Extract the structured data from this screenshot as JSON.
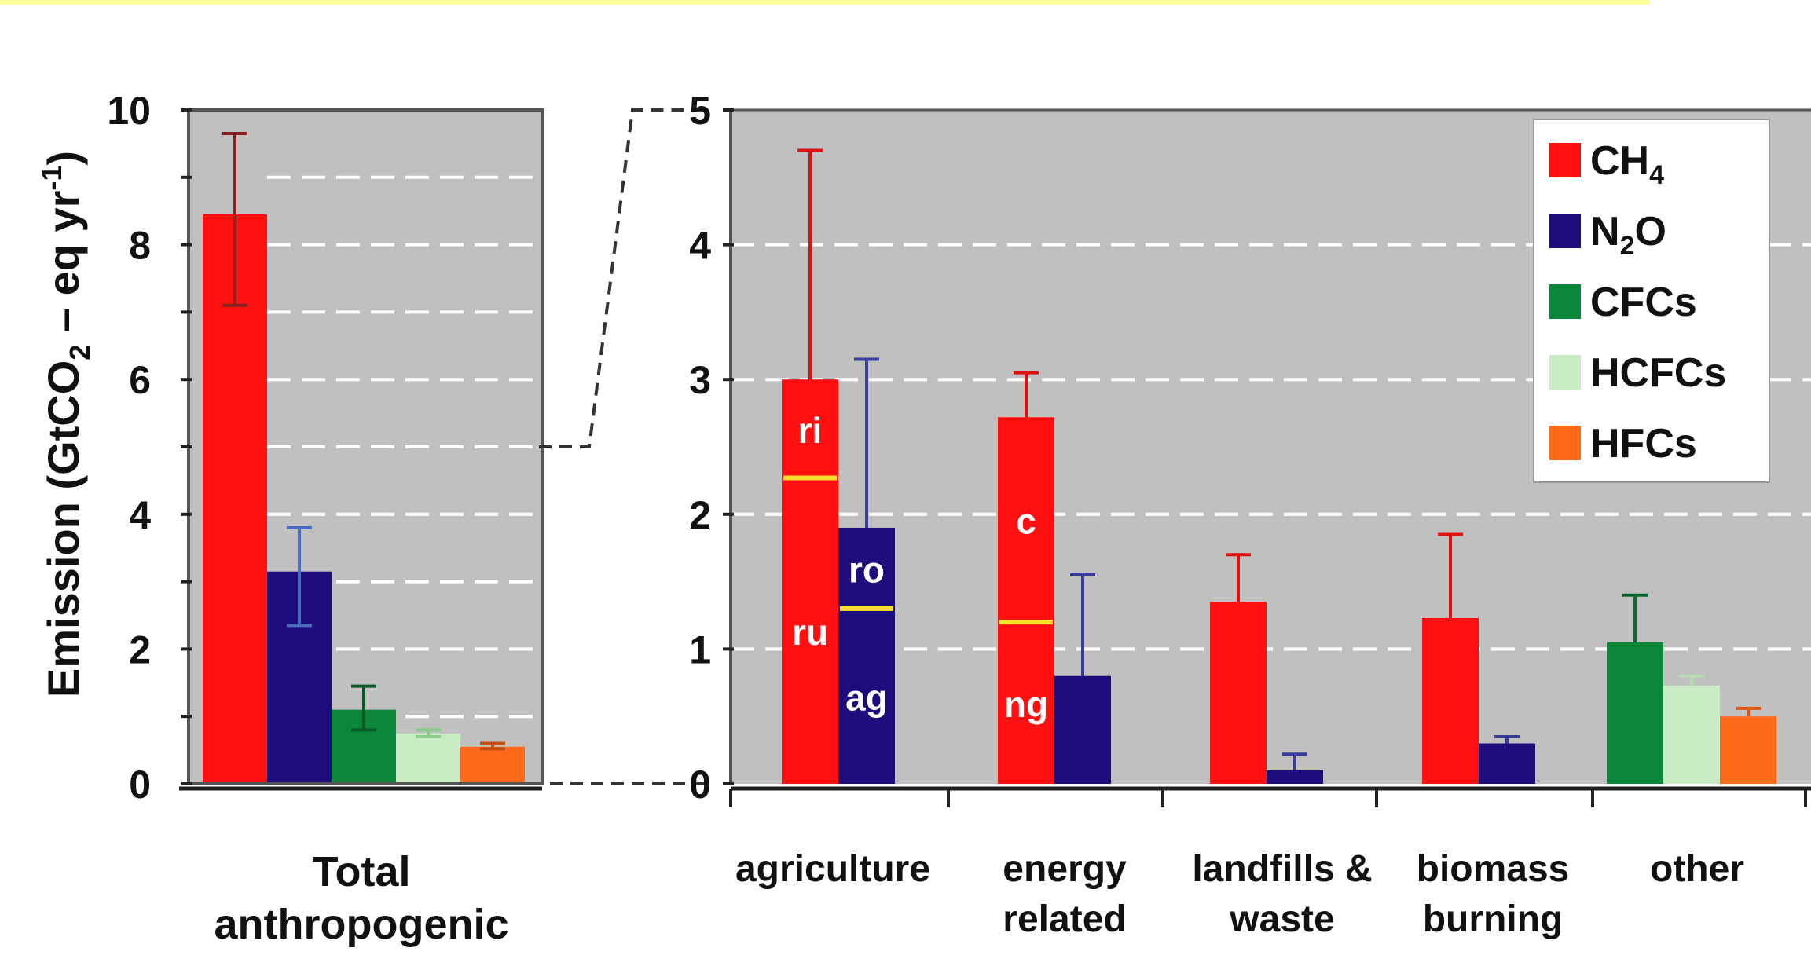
{
  "chart_data": [
    {
      "type": "bar",
      "ylabel": "Emission (GtCO",
      "ylabel_sub": "2",
      "ylabel_mid": " – eq yr",
      "ylabel_sup": "-1",
      "ylabel_end": ")",
      "ylim": [
        0,
        10
      ],
      "yticks": [
        "0",
        "2",
        "4",
        "6",
        "8",
        "10"
      ],
      "grid": true,
      "category_label_line1": "Total",
      "category_label_line2": "anthropogenic",
      "series": [
        {
          "gas": "CH4",
          "value": 8.45,
          "err_low": 7.1,
          "err_high": 9.65
        },
        {
          "gas": "N2O",
          "value": 3.15,
          "err_low": 2.35,
          "err_high": 3.8
        },
        {
          "gas": "CFCs",
          "value": 1.1,
          "err_low": 0.8,
          "err_high": 1.45
        },
        {
          "gas": "HCFCs",
          "value": 0.75,
          "err_low": 0.7,
          "err_high": 0.8
        },
        {
          "gas": "HFCs",
          "value": 0.55,
          "err_low": 0.52,
          "err_high": 0.6
        }
      ]
    },
    {
      "type": "bar",
      "ylim": [
        0,
        5
      ],
      "yticks": [
        "0",
        "1",
        "2",
        "3",
        "4",
        "5"
      ],
      "grid": true,
      "legend_position": "top-right",
      "categories": [
        {
          "line1": "agriculture",
          "line2": ""
        },
        {
          "line1": "energy",
          "line2": "related"
        },
        {
          "line1": "landfills &",
          "line2": "waste"
        },
        {
          "line1": "biomass",
          "line2": "burning"
        },
        {
          "line1": "other",
          "line2": ""
        }
      ],
      "bars": [
        {
          "category": 0,
          "gas": "CH4",
          "value": 3.0,
          "err_high": 4.7,
          "split": 2.27,
          "label_top": "ri",
          "label_bottom": "ru"
        },
        {
          "category": 0,
          "gas": "N2O",
          "value": 1.9,
          "err_high": 3.15,
          "split": 1.3,
          "label_top": "ro",
          "label_bottom": "ag"
        },
        {
          "category": 1,
          "gas": "CH4",
          "value": 2.72,
          "err_high": 3.05,
          "split": 1.2,
          "label_top": "c",
          "label_bottom": "ng"
        },
        {
          "category": 1,
          "gas": "N2O",
          "value": 0.8,
          "err_high": 1.55
        },
        {
          "category": 2,
          "gas": "CH4",
          "value": 1.35,
          "err_high": 1.7
        },
        {
          "category": 2,
          "gas": "N2O",
          "value": 0.1,
          "err_high": 0.22
        },
        {
          "category": 3,
          "gas": "CH4",
          "value": 1.23,
          "err_high": 1.85
        },
        {
          "category": 3,
          "gas": "N2O",
          "value": 0.3,
          "err_high": 0.35
        },
        {
          "category": 4,
          "gas": "CFCs",
          "value": 1.05,
          "err_high": 1.4
        },
        {
          "category": 4,
          "gas": "HCFCs",
          "value": 0.73,
          "err_high": 0.8
        },
        {
          "category": 4,
          "gas": "HFCs",
          "value": 0.5,
          "err_high": 0.56
        }
      ]
    }
  ],
  "legend": [
    {
      "key": "CH4",
      "main": "CH",
      "sub": "4",
      "after": "",
      "color": "#ff1010"
    },
    {
      "key": "N2O",
      "main": "N",
      "sub": "2",
      "after": "O",
      "color": "#1c0c7c"
    },
    {
      "key": "CFCs",
      "main": "CFCs",
      "sub": "",
      "after": "",
      "color": "#0c8638"
    },
    {
      "key": "HCFCs",
      "main": "HCFCs",
      "sub": "",
      "after": "",
      "color": "#c9ecc4"
    },
    {
      "key": "HFCs",
      "main": "HFCs",
      "sub": "",
      "after": "",
      "color": "#ff6a1a"
    }
  ],
  "colors": {
    "CH4": "#ff1010",
    "N2O": "#1c0c7c",
    "CFCs": "#0c8638",
    "HCFCs": "#c9ecc4",
    "HFCs": "#ff6a1a",
    "plot_bg": "#c0c0c0",
    "band": "#ffff99"
  }
}
